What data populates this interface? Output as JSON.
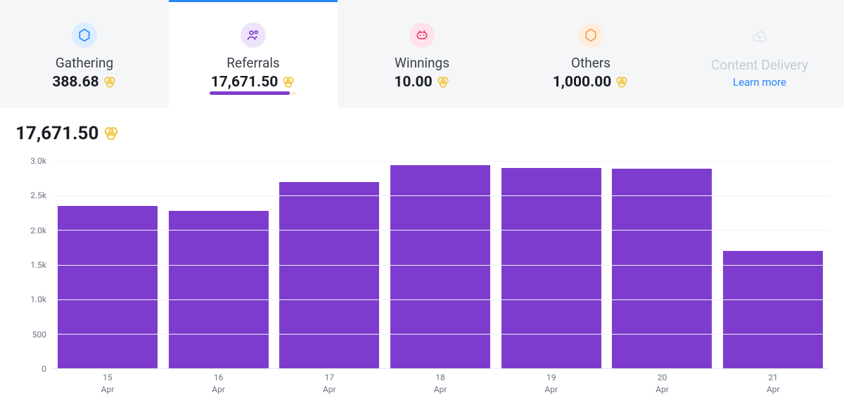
{
  "tabs": [
    {
      "id": "gathering",
      "label": "Gathering",
      "value": "388.68",
      "icon_name": "hexagon-icon",
      "icon_bg": "#dbeeff",
      "icon_fg": "#2684ff",
      "active": false,
      "disabled": false
    },
    {
      "id": "referrals",
      "label": "Referrals",
      "value": "17,671.50",
      "icon_name": "people-icon",
      "icon_bg": "#ede3fb",
      "icon_fg": "#7e3ccf",
      "active": true,
      "disabled": false,
      "progress": {
        "fill_pct": 92,
        "fill_color": "#7e3ccf",
        "track_color": "#faeedd"
      }
    },
    {
      "id": "winnings",
      "label": "Winnings",
      "value": "10.00",
      "icon_name": "piggy-icon",
      "icon_bg": "#ffe2ea",
      "icon_fg": "#e7416a",
      "active": false,
      "disabled": false
    },
    {
      "id": "others",
      "label": "Others",
      "value": "1,000.00",
      "icon_name": "hexagon-icon",
      "icon_bg": "#ffeedd",
      "icon_fg": "#f2994a",
      "active": false,
      "disabled": false
    },
    {
      "id": "content",
      "label": "Content Delivery",
      "link_text": "Learn more",
      "icon_name": "cloud-icon",
      "icon_bg": "transparent",
      "icon_fg": "#e1e5ea",
      "active": false,
      "disabled": true
    }
  ],
  "coin_color": "#f2c94c",
  "chart": {
    "type": "bar",
    "title_value": "17,671.50",
    "categories": [
      "15",
      "16",
      "17",
      "18",
      "19",
      "20",
      "21"
    ],
    "category_sub": "Apr",
    "values": [
      2350,
      2280,
      2700,
      2940,
      2900,
      2890,
      1700
    ],
    "bar_color": "#7e3ccf",
    "bar_width": 0.9,
    "ylim": [
      0,
      3000
    ],
    "yticks": [
      0,
      500,
      1000,
      1500,
      2000,
      2500,
      3000
    ],
    "ytick_labels": [
      "0",
      "500",
      "1.0k",
      "1.5k",
      "2.0k",
      "2.5k",
      "3.0k"
    ],
    "grid_color": "#f0f1f3",
    "axis_color": "#e5e7eb",
    "label_color": "#6b7280",
    "label_fontsize": 12,
    "title_fontsize": 26,
    "background_color": "#ffffff"
  }
}
